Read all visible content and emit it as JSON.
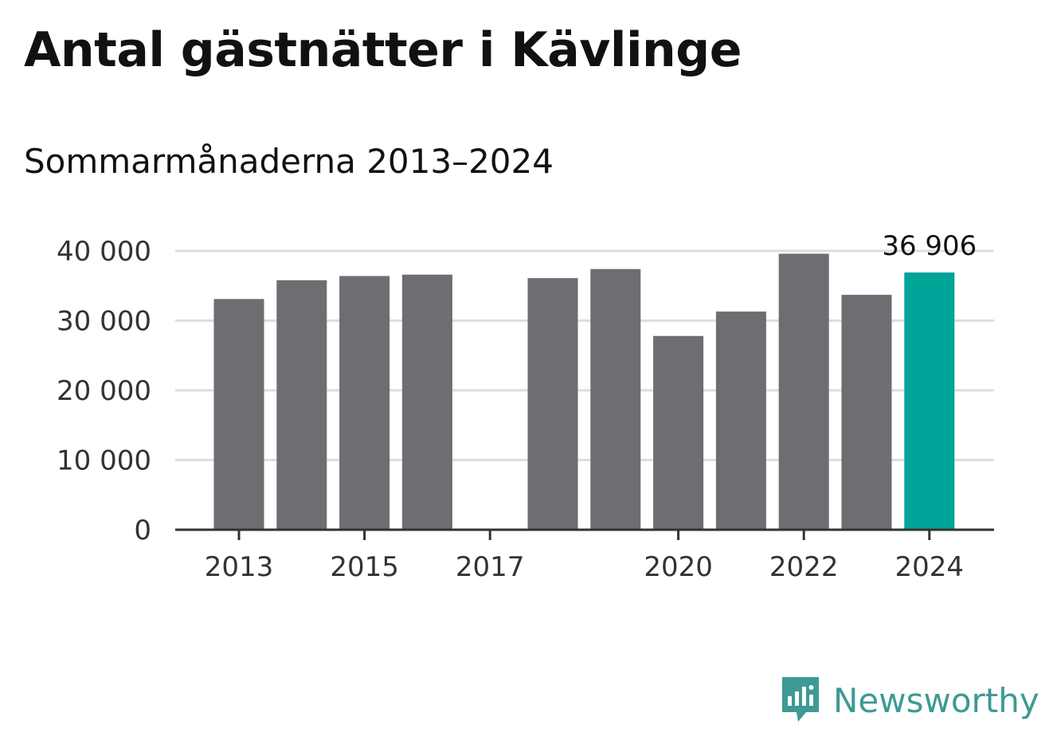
{
  "title": "Antal gästnätter i Kävlinge",
  "subtitle": "Sommarmånaderna 2013–2024",
  "brand": {
    "name": "Newsworthy",
    "color": "#3d9a94"
  },
  "colors": {
    "bar": "#6e6d72",
    "highlight": "#00a499",
    "grid": "#dddddd",
    "axis": "#333333"
  },
  "chart_data": {
    "type": "bar",
    "categories": [
      "2013",
      "2014",
      "2015",
      "2016",
      "2017",
      "2018",
      "2019",
      "2020",
      "2021",
      "2022",
      "2023",
      "2024"
    ],
    "values": [
      33100,
      35800,
      36400,
      36600,
      null,
      36100,
      37400,
      27800,
      31300,
      39600,
      33700,
      36906
    ],
    "x_tick_labels": [
      "2013",
      "2015",
      "2017",
      "2020",
      "2022",
      "2024"
    ],
    "y_ticks": [
      0,
      10000,
      20000,
      30000,
      40000
    ],
    "y_tick_labels": [
      "0",
      "10 000",
      "20 000",
      "30 000",
      "40 000"
    ],
    "ylim": [
      0,
      40000
    ],
    "highlight_category": "2024",
    "data_labels": [
      {
        "category": "2024",
        "text": "36 906"
      }
    ],
    "grid": true,
    "legend": false
  }
}
